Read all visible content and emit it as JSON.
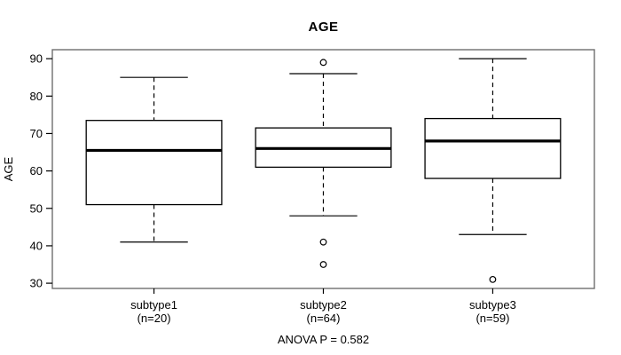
{
  "title": "AGE",
  "footer_annotation": "ANOVA P = 0.582",
  "colors": {
    "background": "#ffffff",
    "frame": "#6e6e6e",
    "line": "#000000",
    "box_fill": "#ffffff"
  },
  "chart_data": {
    "type": "boxplot",
    "title": "AGE",
    "ylabel": "AGE",
    "annotation": "ANOVA P = 0.582",
    "ylim": [
      28.6,
      92.4
    ],
    "yticks": [
      30,
      40,
      50,
      60,
      70,
      80,
      90
    ],
    "grid": false,
    "legend": "none",
    "categories": [
      "subtype1",
      "subtype2",
      "subtype3"
    ],
    "groups": [
      {
        "label": "subtype1",
        "sublabel": "(n=20)",
        "n": 20,
        "whisker_low": 41,
        "q1": 51,
        "median": 65.5,
        "q3": 73.5,
        "whisker_high": 85,
        "outliers": []
      },
      {
        "label": "subtype2",
        "sublabel": "(n=64)",
        "n": 64,
        "whisker_low": 48,
        "q1": 61,
        "median": 66,
        "q3": 71.5,
        "whisker_high": 86,
        "outliers": [
          89,
          41,
          35
        ]
      },
      {
        "label": "subtype3",
        "sublabel": "(n=59)",
        "n": 59,
        "whisker_low": 43,
        "q1": 58,
        "median": 68,
        "q3": 74,
        "whisker_high": 90,
        "outliers": [
          31
        ]
      }
    ]
  }
}
